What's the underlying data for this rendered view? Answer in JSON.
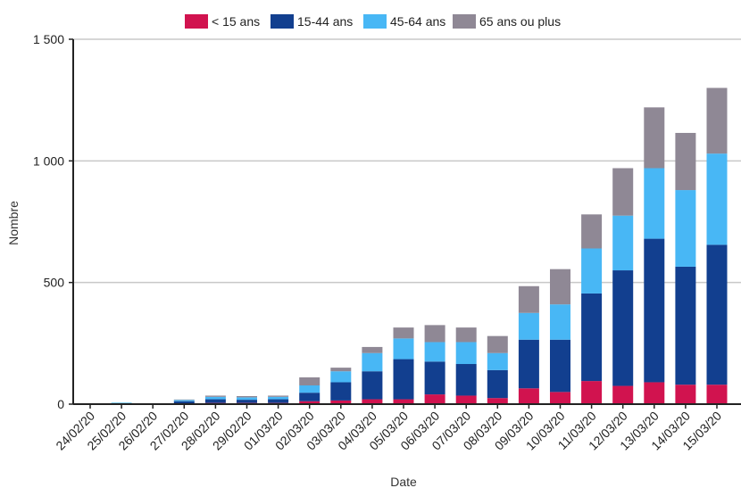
{
  "chart_data": {
    "type": "bar",
    "stacked": true,
    "xlabel": "Date",
    "ylabel": "Nombre",
    "ylim": [
      0,
      1500
    ],
    "yticks": [
      0,
      500,
      1000,
      1500
    ],
    "ytick_labels": [
      "0",
      "500",
      "1 000",
      "1 500"
    ],
    "grid": true,
    "legend": "top",
    "categories": [
      "24/02/20",
      "25/02/20",
      "26/02/20",
      "27/02/20",
      "28/02/20",
      "29/02/20",
      "01/03/20",
      "02/03/20",
      "03/03/20",
      "04/03/20",
      "05/03/20",
      "06/03/20",
      "07/03/20",
      "08/03/20",
      "09/03/20",
      "10/03/20",
      "11/03/20",
      "12/03/20",
      "13/03/20",
      "14/03/20",
      "15/03/20"
    ],
    "x_tick_labels": [
      "24/02/20",
      "25/02/20",
      "26/02/20",
      "27/02/20",
      "28/02/20",
      "29/02/20",
      "01/03/20",
      "02/03/20",
      "03/03/20",
      "04/03/20",
      "05/03/20",
      "06/03/20",
      "07/03/20",
      "08/03/20",
      "09/03/20",
      "10/03/20",
      "11/03/20",
      "12/03/20",
      "13/03/20",
      "14/03/20",
      "15/03/20"
    ],
    "series": [
      {
        "name": "< 15 ans",
        "color": "#d1134f",
        "values": [
          0,
          0,
          0,
          2,
          5,
          5,
          5,
          12,
          15,
          20,
          20,
          40,
          35,
          25,
          65,
          50,
          95,
          75,
          90,
          80,
          80
        ]
      },
      {
        "name": "15-44 ans",
        "color": "#123f8f",
        "values": [
          3,
          3,
          3,
          10,
          15,
          13,
          15,
          35,
          75,
          115,
          165,
          135,
          130,
          115,
          200,
          215,
          360,
          475,
          590,
          485,
          575
        ]
      },
      {
        "name": "45-64 ans",
        "color": "#48b7f5",
        "values": [
          0,
          3,
          0,
          5,
          10,
          10,
          10,
          30,
          45,
          75,
          85,
          80,
          90,
          70,
          110,
          145,
          185,
          225,
          290,
          315,
          375
        ]
      },
      {
        "name": "65 ans ou plus",
        "color": "#8f8895",
        "values": [
          0,
          0,
          0,
          2,
          5,
          5,
          5,
          33,
          15,
          25,
          45,
          70,
          60,
          70,
          110,
          145,
          140,
          195,
          250,
          235,
          270
        ]
      }
    ]
  }
}
